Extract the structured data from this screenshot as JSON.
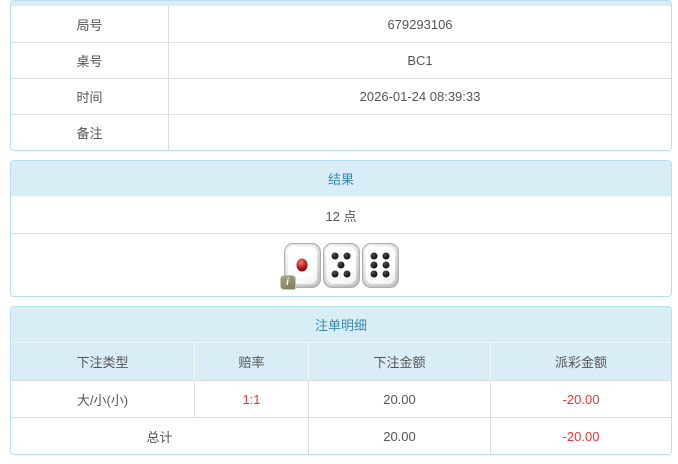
{
  "info_table": {
    "rows": [
      {
        "label": "局号",
        "value": "679293106"
      },
      {
        "label": "桌号",
        "value": "BC1"
      },
      {
        "label": "时间",
        "value": "2026-01-24 08:39:33"
      },
      {
        "label": "备注",
        "value": ""
      }
    ]
  },
  "result_section": {
    "title": "结果",
    "points_text": "12 点",
    "dice": [
      1,
      5,
      6
    ],
    "info_badge": "i"
  },
  "bets_section": {
    "title": "注单明细",
    "columns": [
      "下注类型",
      "赔率",
      "下注金额",
      "派彩金额"
    ],
    "rows": [
      {
        "bet_type": "大/小(小)",
        "odds": "1:1",
        "bet_amount": "20.00",
        "payout": "-20.00"
      }
    ],
    "total": {
      "label": "总计",
      "bet_amount": "20.00",
      "payout": "-20.00"
    }
  },
  "colors": {
    "header_bg": "#d9edf7",
    "header_text": "#3a87ad",
    "panel_border": "#b7dff0",
    "row_border": "#dddddd",
    "body_text": "#555555",
    "negative_red": "#ee3333"
  }
}
